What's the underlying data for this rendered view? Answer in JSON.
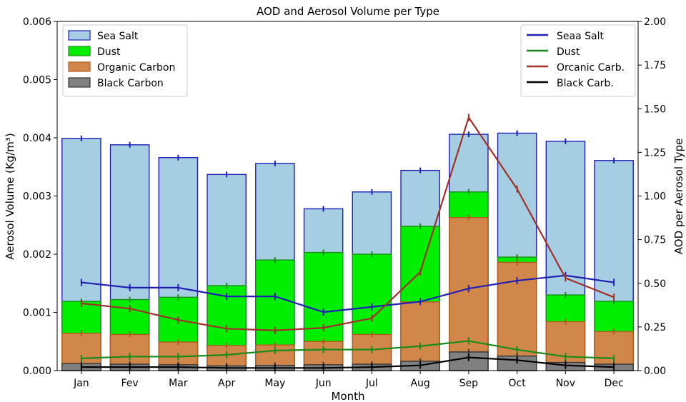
{
  "chart_data": {
    "type": "bar",
    "title": "AOD and Aerosol Volume per Type",
    "xlabel": "Month",
    "ylabel_left": "Aerosol Volume (Kg/m³)",
    "ylabel_right": "AOD per Aerosol Type",
    "categories": [
      "Jan",
      "Fev",
      "Mar",
      "Apr",
      "May",
      "Jun",
      "Jul",
      "Aug",
      "Sep",
      "Oct",
      "Nov",
      "Dec"
    ],
    "ylim_left": [
      0,
      0.006
    ],
    "yticks_left": [
      "0.000",
      "0.001",
      "0.002",
      "0.003",
      "0.004",
      "0.005",
      "0.006"
    ],
    "ylim_right": [
      0,
      2.0
    ],
    "yticks_right": [
      "0.00",
      "0.25",
      "0.50",
      "0.75",
      "1.00",
      "1.25",
      "1.50",
      "1.75",
      "2.00"
    ],
    "bar_series": [
      {
        "name": "Sea Salt",
        "color": "#a6cee3",
        "edge": "#1f1fb4",
        "values": [
          0.00399,
          0.00388,
          0.00366,
          0.00337,
          0.00356,
          0.00278,
          0.00307,
          0.00344,
          0.00406,
          0.00408,
          0.00394,
          0.00361
        ]
      },
      {
        "name": "Dust",
        "color": "#00ee00",
        "edge": "#1a8a1a",
        "values": [
          0.00119,
          0.00122,
          0.00126,
          0.00146,
          0.0019,
          0.00203,
          0.002,
          0.00248,
          0.00307,
          0.00195,
          0.0013,
          0.00119
        ]
      },
      {
        "name": "Organic Carbon",
        "color": "#d2874a",
        "edge": "#b05a20",
        "values": [
          0.00064,
          0.00062,
          0.00049,
          0.00043,
          0.00044,
          0.0005,
          0.00062,
          0.00118,
          0.00263,
          0.00186,
          0.00084,
          0.00067
        ]
      },
      {
        "name": "Black Carbon",
        "color": "#808080",
        "edge": "#333333",
        "values": [
          0.00012,
          0.00011,
          0.0001,
          8e-05,
          9e-05,
          0.0001,
          0.00011,
          0.00016,
          0.00032,
          0.00025,
          0.00014,
          0.00011
        ]
      }
    ],
    "line_series": [
      {
        "name": "Seaa Salt",
        "color": "#1f1fb4",
        "values": [
          0.505,
          0.475,
          0.475,
          0.425,
          0.425,
          0.335,
          0.365,
          0.395,
          0.47,
          0.515,
          0.545,
          0.505
        ]
      },
      {
        "name": "Dust",
        "color": "#1a8a1a",
        "values": [
          0.07,
          0.08,
          0.08,
          0.09,
          0.115,
          0.12,
          0.12,
          0.14,
          0.17,
          0.12,
          0.08,
          0.07
        ]
      },
      {
        "name": "Orcanic Carb.",
        "color": "#a0302a",
        "values": [
          0.385,
          0.355,
          0.29,
          0.24,
          0.23,
          0.245,
          0.3,
          0.565,
          1.45,
          1.04,
          0.53,
          0.42
        ]
      },
      {
        "name": "Black Carb.",
        "color": "#000000",
        "values": [
          0.02,
          0.02,
          0.02,
          0.015,
          0.015,
          0.015,
          0.02,
          0.03,
          0.075,
          0.06,
          0.03,
          0.02
        ]
      }
    ],
    "legend_left": "top-left",
    "legend_right": "top-right",
    "grid": false
  }
}
